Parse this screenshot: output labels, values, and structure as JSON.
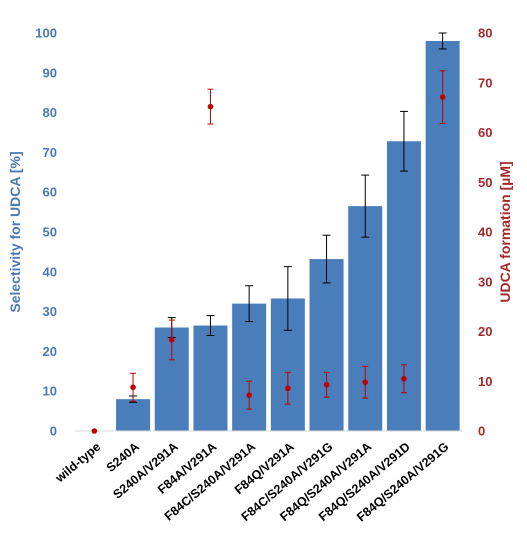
{
  "chart_data": {
    "type": "bar",
    "categories": [
      "wild-type",
      "S240A",
      "S240A/V291A",
      "F84A/V291A",
      "F84C/S240A/V291A",
      "F84Q/V291A",
      "F84C/S240A/V291G",
      "F84Q/S240A/V291A",
      "F84Q/S240A/V291D",
      "F84Q/S240A/V291G"
    ],
    "series": [
      {
        "axis": "left",
        "style": "bar",
        "color": "#4a7ebb",
        "values": [
          0,
          8,
          26,
          26.5,
          32,
          33.3,
          43.2,
          56.5,
          72.8,
          98
        ],
        "errors": [
          0,
          0.8,
          2.5,
          2.5,
          4.5,
          8,
          6,
          7.8,
          7.5,
          2
        ]
      },
      {
        "axis": "right",
        "style": "point",
        "color": "#c00000",
        "values": [
          0,
          8.8,
          18.3,
          65.2,
          7.2,
          8.6,
          9.3,
          9.8,
          10.5,
          67.1
        ],
        "errors": [
          0,
          2.8,
          4,
          3.5,
          2.8,
          3.2,
          2.5,
          3.2,
          2.8,
          5.3
        ]
      }
    ],
    "ylabel": "Selectivity for UDCA [%]",
    "ylabel_right": "UDCA formation [µM]",
    "ylim": [
      0,
      100
    ],
    "ylim_right": [
      0,
      80
    ],
    "yticks": [
      0,
      10,
      20,
      30,
      40,
      50,
      60,
      70,
      80,
      90,
      100
    ],
    "yticks_right": [
      0,
      10,
      20,
      30,
      40,
      50,
      60,
      70,
      80
    ],
    "grid": false,
    "legend": "none"
  }
}
